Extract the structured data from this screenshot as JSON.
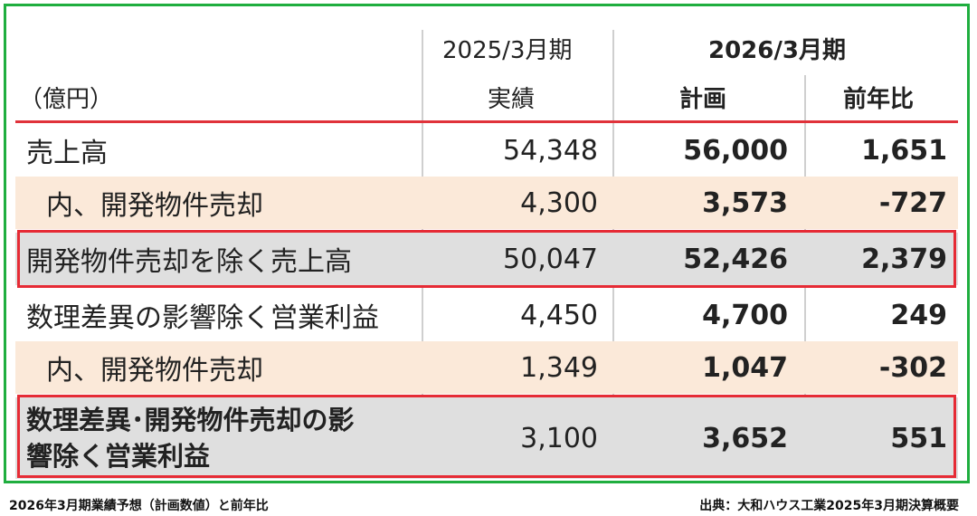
{
  "header": {
    "unit_label": "（億円）",
    "period_prev": "2025/3月期",
    "period_next": "2026/3月期",
    "col_actual": "実績",
    "col_plan": "計画",
    "col_yoy": "前年比"
  },
  "rows": [
    {
      "label": "売上高",
      "actual": "54,348",
      "plan": "56,000",
      "yoy": "1,651"
    },
    {
      "label": "内、開発物件売却",
      "actual": "4,300",
      "plan": "3,573",
      "yoy": "-727"
    },
    {
      "label": "開発物件売却を除く売上高",
      "actual": "50,047",
      "plan": "52,426",
      "yoy": "2,379"
    },
    {
      "label": "数理差異の影響除く営業利益",
      "actual": "4,450",
      "plan": "4,700",
      "yoy": "249"
    },
    {
      "label": "内、開発物件売却",
      "actual": "1,349",
      "plan": "1,047",
      "yoy": "-302"
    },
    {
      "label": "数理差異･開発物件売却の影響除く営業利益",
      "actual": "3,100",
      "plan": "3,652",
      "yoy": "551"
    }
  ],
  "footer": {
    "caption": "2026年3月期業績予想（計画数値）と前年比",
    "source": "出典：大和ハウス工業2025年3月期決算概要"
  },
  "colors": {
    "frame": "#1fae3f",
    "highlight": "#e62b35",
    "peach_row": "#fbe9d9",
    "grey_row": "#dfdfdf"
  }
}
